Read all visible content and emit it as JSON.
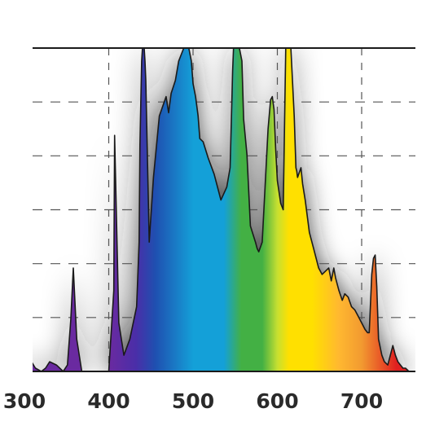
{
  "chart_data": {
    "type": "area",
    "title": "",
    "xlabel": "",
    "ylabel": "",
    "xlim": [
      300,
      760
    ],
    "ylim": [
      0,
      100
    ],
    "x_ticks": [
      {
        "value": 300,
        "label": "300"
      },
      {
        "value": 400,
        "label": "400"
      },
      {
        "value": 500,
        "label": "500"
      },
      {
        "value": 600,
        "label": "600"
      },
      {
        "value": 700,
        "label": "700"
      }
    ],
    "grid": {
      "vertical": true,
      "horizontal": true,
      "style": "dashed"
    },
    "series": [
      {
        "x": [
          300,
          302,
          306,
          313,
          320,
          325,
          330,
          338,
          346,
          351,
          355,
          358,
          362,
          368,
          376,
          385,
          394,
          400,
          406,
          407,
          412,
          418,
          425,
          433,
          436,
          437,
          439,
          440,
          441,
          442,
          443,
          444,
          448,
          453,
          460,
          468,
          471,
          474,
          479,
          483,
          489,
          491,
          492,
          494,
          495,
          498,
          500,
          503,
          506,
          508,
          512,
          518,
          525,
          533,
          540,
          544,
          546,
          547,
          548,
          550,
          555,
          558,
          560,
          564,
          568,
          574,
          576,
          578,
          582,
          585,
          589,
          592,
          594,
          596,
          598,
          600,
          604,
          607,
          610,
          613,
          615,
          616,
          620,
          622,
          623,
          624,
          628,
          630,
          633,
          638,
          643,
          649,
          653,
          657,
          661,
          664,
          667,
          669,
          673,
          677,
          680,
          684,
          688,
          692,
          696,
          700,
          704,
          707,
          709,
          712,
          714,
          716,
          718,
          720,
          724,
          727,
          731,
          734,
          737,
          740,
          743,
          746,
          749,
          752,
          756,
          760
        ],
        "y": [
          0,
          1,
          4,
          1,
          0,
          1,
          3,
          2,
          0,
          2,
          16,
          32,
          10,
          0,
          0,
          0,
          0,
          0,
          25,
          73,
          15,
          5,
          10,
          20,
          40,
          70,
          96,
          100,
          100,
          100,
          96,
          90,
          40,
          60,
          79,
          85,
          80,
          86,
          90,
          96,
          100,
          100,
          100,
          100,
          100,
          96,
          89,
          85,
          79,
          72,
          71,
          66,
          61,
          53,
          57,
          63,
          83,
          93,
          100,
          100,
          100,
          96,
          78,
          67,
          45,
          40,
          38,
          37,
          40,
          55,
          75,
          84,
          85,
          81,
          69,
          59,
          52,
          50,
          100,
          100,
          100,
          100,
          79,
          63,
          62,
          60,
          63,
          58,
          53,
          43,
          38,
          32,
          30,
          31,
          32,
          28,
          32,
          29,
          25,
          22,
          24,
          23,
          20,
          19,
          17,
          15,
          13,
          12,
          12,
          30,
          35,
          36,
          26,
          10,
          5,
          3,
          2,
          5,
          8,
          5,
          3,
          2,
          1,
          1,
          0,
          0
        ]
      }
    ],
    "colors": {
      "violet": "#6a2aa0",
      "indigo": "#4a2ea8",
      "blue": "#1f4fb0",
      "cyan": "#14a0d8",
      "green": "#43b044",
      "yellow": "#ffe000",
      "orange": "#f29a30",
      "red": "#e02020",
      "outline": "#1a1a1a",
      "glow": "#1e1e1e",
      "grid": "#555555"
    }
  }
}
